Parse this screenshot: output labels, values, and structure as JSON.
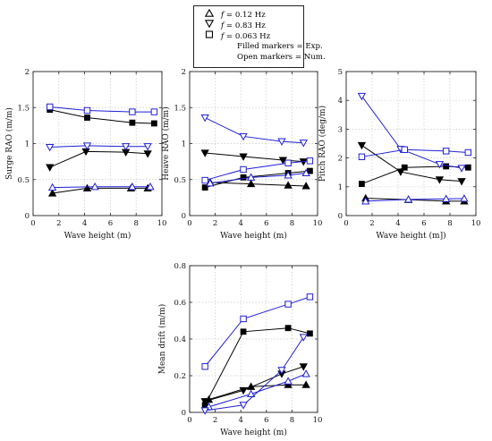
{
  "legend": {
    "entries": [
      {
        "marker": "triangle-up",
        "label": "f = 0.12 Hz"
      },
      {
        "marker": "triangle-down",
        "label": "f = 0.83 Hz"
      },
      {
        "marker": "square",
        "label": "f = 0.063 Hz"
      }
    ],
    "note1": "Filled markers = Exp.",
    "note2": "Open markers = Num."
  },
  "colors": {
    "exp": "#000000",
    "num": "#1f1fd8",
    "grid": "#c8c8c8",
    "axis": "#222222"
  },
  "chart_data": [
    {
      "type": "line",
      "xlabel": "Wave height (m)",
      "ylabel": "Surge RAO (m/m)",
      "xlim": [
        0,
        10
      ],
      "ylim": [
        0,
        2
      ],
      "xticks": [
        "0",
        "2",
        "4",
        "6",
        "8",
        "10"
      ],
      "yticks": [
        "0",
        "0.5",
        "1",
        "1.5",
        "2"
      ],
      "grid": true,
      "series": [
        {
          "marker": "triangle-up",
          "kind": "exp",
          "x": [
            1.5,
            4.2,
            7.6,
            8.9
          ],
          "y": [
            0.31,
            0.38,
            0.38,
            0.38
          ]
        },
        {
          "marker": "triangle-down",
          "kind": "exp",
          "x": [
            1.3,
            4.1,
            7.2,
            8.9
          ],
          "y": [
            0.67,
            0.89,
            0.88,
            0.86
          ]
        },
        {
          "marker": "square",
          "kind": "exp",
          "x": [
            1.3,
            4.2,
            7.7,
            9.4
          ],
          "y": [
            1.47,
            1.36,
            1.29,
            1.28
          ]
        },
        {
          "marker": "triangle-up",
          "kind": "num",
          "x": [
            1.5,
            4.8,
            7.7,
            9.1
          ],
          "y": [
            0.39,
            0.4,
            0.4,
            0.4
          ]
        },
        {
          "marker": "triangle-down",
          "kind": "num",
          "x": [
            1.3,
            4.2,
            7.2,
            8.9
          ],
          "y": [
            0.95,
            0.97,
            0.96,
            0.96
          ]
        },
        {
          "marker": "square",
          "kind": "num",
          "x": [
            1.3,
            4.2,
            7.7,
            9.4
          ],
          "y": [
            1.51,
            1.46,
            1.44,
            1.44
          ]
        }
      ]
    },
    {
      "type": "line",
      "xlabel": "Wave height (m)",
      "ylabel": "Heave RAO (m/m)",
      "xlim": [
        0,
        10
      ],
      "ylim": [
        0,
        2
      ],
      "xticks": [
        "0",
        "2",
        "4",
        "6",
        "8",
        "10"
      ],
      "yticks": [
        "0",
        "0.5",
        "1",
        "1.5",
        "2"
      ],
      "grid": true,
      "series": [
        {
          "marker": "triangle-up",
          "kind": "exp",
          "x": [
            1.6,
            4.8,
            7.7,
            9.1
          ],
          "y": [
            0.46,
            0.44,
            0.42,
            0.41
          ]
        },
        {
          "marker": "triangle-down",
          "kind": "exp",
          "x": [
            1.2,
            4.2,
            7.3,
            8.9
          ],
          "y": [
            0.87,
            0.82,
            0.77,
            0.75
          ]
        },
        {
          "marker": "square",
          "kind": "exp",
          "x": [
            1.2,
            4.2,
            7.7,
            9.4
          ],
          "y": [
            0.39,
            0.53,
            0.59,
            0.62
          ]
        },
        {
          "marker": "triangle-up",
          "kind": "num",
          "x": [
            1.6,
            4.8,
            7.7,
            9.1
          ],
          "y": [
            0.45,
            0.53,
            0.56,
            0.59
          ]
        },
        {
          "marker": "triangle-down",
          "kind": "num",
          "x": [
            1.2,
            4.2,
            7.2,
            8.9
          ],
          "y": [
            1.36,
            1.1,
            1.03,
            1.01
          ]
        },
        {
          "marker": "square",
          "kind": "num",
          "x": [
            1.2,
            4.2,
            7.7,
            9.4
          ],
          "y": [
            0.49,
            0.64,
            0.73,
            0.76
          ]
        }
      ]
    },
    {
      "type": "line",
      "xlabel": "Wave height (m])",
      "ylabel": "Pitch RAO (deg/m)",
      "xlim": [
        0,
        10
      ],
      "ylim": [
        0,
        5
      ],
      "xticks": [
        "0",
        "2",
        "4",
        "6",
        "8",
        "10"
      ],
      "yticks": [
        "0",
        "1",
        "2",
        "3",
        "4",
        "5"
      ],
      "grid": true,
      "series": [
        {
          "marker": "triangle-up",
          "kind": "exp",
          "x": [
            1.5,
            4.8,
            7.7,
            9.1
          ],
          "y": [
            0.6,
            0.55,
            0.5,
            0.5
          ]
        },
        {
          "marker": "triangle-down",
          "kind": "exp",
          "x": [
            1.2,
            4.2,
            7.2,
            8.9
          ],
          "y": [
            2.44,
            1.52,
            1.25,
            1.19
          ]
        },
        {
          "marker": "square",
          "kind": "exp",
          "x": [
            1.2,
            4.5,
            7.7,
            9.4
          ],
          "y": [
            1.1,
            1.67,
            1.71,
            1.67
          ]
        },
        {
          "marker": "triangle-up",
          "kind": "num",
          "x": [
            1.5,
            4.8,
            7.7,
            9.1
          ],
          "y": [
            0.5,
            0.56,
            0.58,
            0.59
          ]
        },
        {
          "marker": "triangle-down",
          "kind": "num",
          "x": [
            1.2,
            4.2,
            7.2,
            8.9
          ],
          "y": [
            4.15,
            2.31,
            1.78,
            1.65
          ]
        },
        {
          "marker": "square",
          "kind": "num",
          "x": [
            1.2,
            4.5,
            7.7,
            9.4
          ],
          "y": [
            2.04,
            2.29,
            2.24,
            2.19
          ]
        }
      ]
    },
    {
      "type": "line",
      "xlabel": "Wave height (m)",
      "ylabel": "Mean drift (m/m)",
      "xlim": [
        0,
        10
      ],
      "ylim": [
        0,
        0.8
      ],
      "xticks": [
        "0",
        "2",
        "4",
        "6",
        "8",
        "10"
      ],
      "yticks": [
        "0",
        "0.2",
        "0.4",
        "0.6",
        "0.8"
      ],
      "grid": true,
      "series": [
        {
          "marker": "triangle-up",
          "kind": "exp",
          "x": [
            1.5,
            4.8,
            7.7,
            9.1
          ],
          "y": [
            0.07,
            0.14,
            0.15,
            0.15
          ]
        },
        {
          "marker": "triangle-down",
          "kind": "exp",
          "x": [
            1.2,
            4.2,
            7.2,
            8.9
          ],
          "y": [
            0.06,
            0.12,
            0.21,
            0.25
          ]
        },
        {
          "marker": "square",
          "kind": "exp",
          "x": [
            1.2,
            4.2,
            7.7,
            9.4
          ],
          "y": [
            0.04,
            0.44,
            0.46,
            0.43
          ]
        },
        {
          "marker": "triangle-up",
          "kind": "num",
          "x": [
            1.5,
            4.8,
            7.7,
            9.1
          ],
          "y": [
            0.03,
            0.1,
            0.17,
            0.21
          ]
        },
        {
          "marker": "triangle-down",
          "kind": "num",
          "x": [
            1.2,
            4.2,
            7.2,
            8.9
          ],
          "y": [
            0.01,
            0.04,
            0.23,
            0.41
          ]
        },
        {
          "marker": "square",
          "kind": "num",
          "x": [
            1.2,
            4.2,
            7.7,
            9.4
          ],
          "y": [
            0.25,
            0.51,
            0.59,
            0.63
          ]
        }
      ]
    }
  ]
}
